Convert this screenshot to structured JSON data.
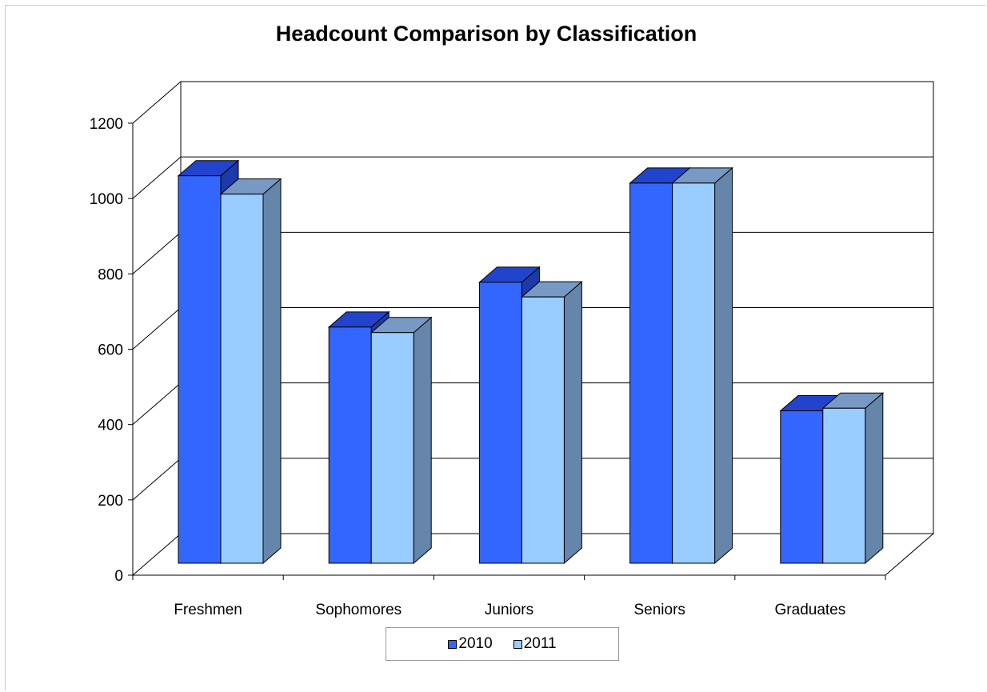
{
  "chart_data": {
    "type": "bar",
    "title": "Headcount Comparison by Classification",
    "categories": [
      "Freshmen",
      "Sophomores",
      "Juniors",
      "Seniors",
      "Graduates"
    ],
    "series": [
      {
        "name": "2010",
        "values": [
          1055,
          643,
          765,
          1035,
          415
        ]
      },
      {
        "name": "2011",
        "values": [
          1005,
          628,
          725,
          1035,
          422
        ]
      }
    ],
    "ylim": [
      0,
      1200
    ],
    "yticks": [
      0,
      200,
      400,
      600,
      800,
      1000,
      1200
    ],
    "xlabel": "",
    "ylabel": "",
    "grid": true,
    "legend": "bottom",
    "style": "3d-clustered-column",
    "colors": {
      "2010": {
        "front": "#3366ff",
        "top": "#2244cc",
        "side": "#1e3aa8"
      },
      "2011": {
        "front": "#99ccff",
        "top": "#7799c4",
        "side": "#6685aa"
      }
    }
  }
}
